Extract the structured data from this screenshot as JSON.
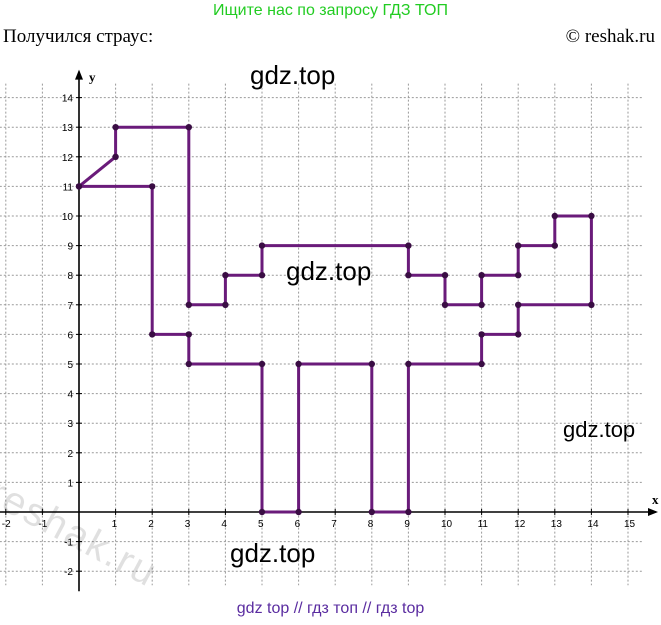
{
  "header": {
    "banner": "Ищите нас по запросу ГДЗ ТОП",
    "caption": "Получился страус:",
    "copyright": "© reshak.ru"
  },
  "watermarks": {
    "w1": "gdz.top",
    "w2": "gdz.top",
    "w3": "gdz.top",
    "w4": "gdz.top",
    "reshak": "reshak.ru"
  },
  "footer": {
    "text": "gdz top  //  гдз топ  //  гдз top"
  },
  "colors": {
    "line": "#6a1b7a",
    "grid": "#9a9a9a",
    "axis": "#000000",
    "banner": "#22cc22",
    "footer": "#5a2ca0"
  },
  "chart_data": {
    "type": "line",
    "xlabel": "x",
    "ylabel": "y",
    "xlim": [
      -2,
      15
    ],
    "ylim": [
      -2,
      14
    ],
    "grid": true,
    "x_ticks": [
      -2,
      -1,
      1,
      2,
      3,
      4,
      5,
      6,
      7,
      8,
      9,
      10,
      11,
      12,
      13,
      14,
      15
    ],
    "y_ticks": [
      -2,
      -1,
      1,
      2,
      3,
      4,
      5,
      6,
      7,
      8,
      9,
      10,
      11,
      12,
      13,
      14
    ],
    "series": [
      {
        "points": [
          [
            0,
            11
          ],
          [
            1,
            12
          ],
          [
            1,
            13
          ],
          [
            3,
            13
          ],
          [
            3,
            7
          ],
          [
            4,
            7
          ],
          [
            4,
            8
          ],
          [
            5,
            8
          ],
          [
            5,
            9
          ],
          [
            9,
            9
          ],
          [
            9,
            8
          ],
          [
            10,
            8
          ],
          [
            10,
            7
          ],
          [
            11,
            7
          ],
          [
            11,
            8
          ],
          [
            12,
            8
          ],
          [
            12,
            9
          ],
          [
            13,
            9
          ],
          [
            13,
            10
          ],
          [
            14,
            10
          ],
          [
            14,
            7
          ],
          [
            12,
            7
          ],
          [
            12,
            6
          ],
          [
            11,
            6
          ],
          [
            11,
            5
          ],
          [
            9,
            5
          ],
          [
            9,
            0
          ],
          [
            8,
            0
          ],
          [
            8,
            5
          ],
          [
            6,
            5
          ],
          [
            6,
            0
          ],
          [
            5,
            0
          ],
          [
            5,
            5
          ],
          [
            3,
            5
          ],
          [
            3,
            6
          ],
          [
            2,
            6
          ],
          [
            2,
            11
          ],
          [
            0,
            11
          ]
        ]
      }
    ]
  }
}
